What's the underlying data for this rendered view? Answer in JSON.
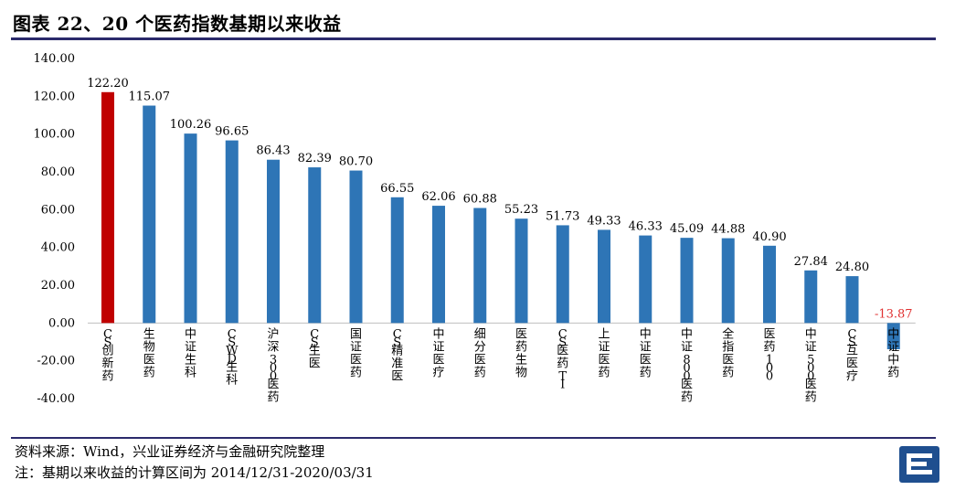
{
  "title": "图表 22、20 个医药指数基期以来收益",
  "footer": {
    "source": "资料来源：Wind，兴业证券经济与金融研究院整理",
    "note": "注：基期以来收益的计算区间为 2014/12/31-2020/03/31"
  },
  "colors": {
    "highlight": "#c00000",
    "bar": "#2e75b6",
    "negative_label": "#e03030",
    "rule": "#2b2a6b"
  },
  "chart_data": {
    "type": "bar",
    "categories": [
      "CS创新药",
      "生物医药",
      "中证生科",
      "CSWD生科",
      "沪深300医药",
      "CS生医",
      "国证医药",
      "CS精准医",
      "中证医疗",
      "细分医药",
      "医药生物",
      "CS医药TI",
      "上证医药",
      "中证医药",
      "中证800医药",
      "全指医药",
      "医药100",
      "中证500医药",
      "CS互医疗",
      "中证中药"
    ],
    "values": [
      122.2,
      115.07,
      100.26,
      96.65,
      86.43,
      82.39,
      80.7,
      66.55,
      62.06,
      60.88,
      55.23,
      51.73,
      49.33,
      46.33,
      45.09,
      44.88,
      40.9,
      27.84,
      24.8,
      -13.87
    ],
    "value_labels": [
      "122.20",
      "115.07",
      "100.26",
      "96.65",
      "86.43",
      "82.39",
      "80.70",
      "66.55",
      "62.06",
      "60.88",
      "55.23",
      "51.73",
      "49.33",
      "46.33",
      "45.09",
      "44.88",
      "40.90",
      "27.84",
      "24.80",
      "-13.87"
    ],
    "highlight_index": 0,
    "ylim": [
      -40,
      140
    ],
    "yticks": [
      "-40.00",
      "-20.00",
      "0.00",
      "20.00",
      "40.00",
      "60.00",
      "80.00",
      "100.00",
      "120.00",
      "140.00"
    ],
    "ytick_values": [
      -40,
      -20,
      0,
      20,
      40,
      60,
      80,
      100,
      120,
      140
    ],
    "grid": false,
    "legend": "none"
  }
}
